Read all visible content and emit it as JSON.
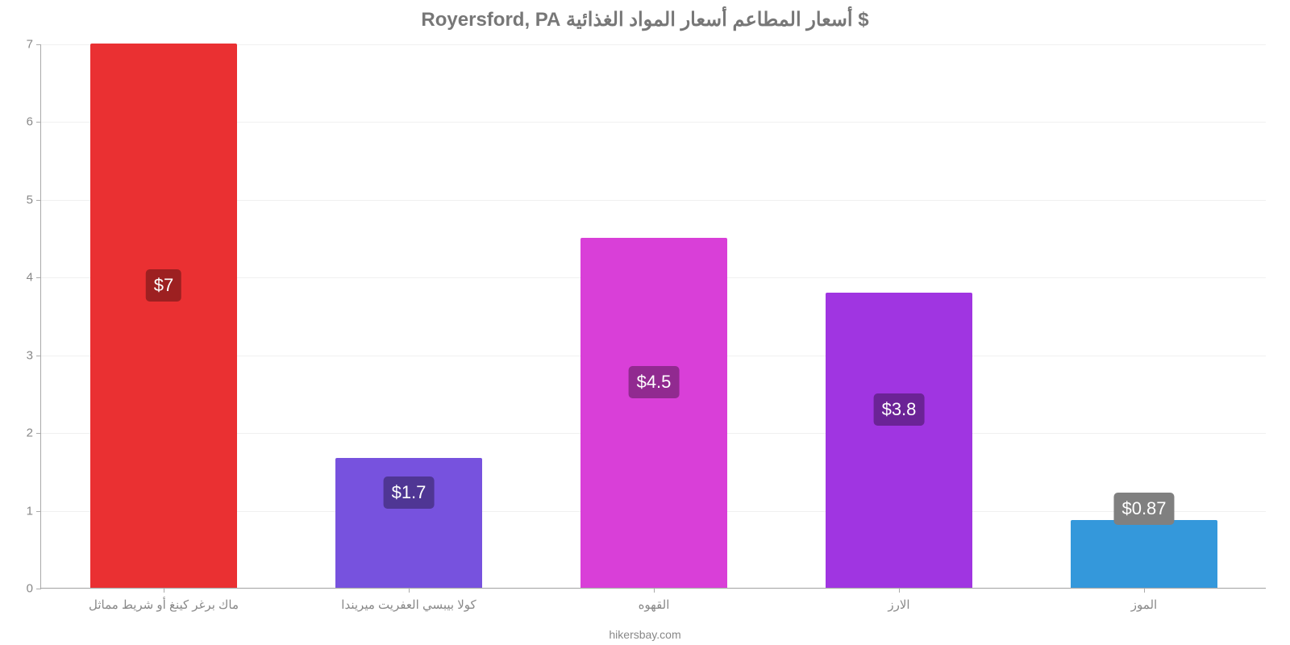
{
  "chart": {
    "type": "bar",
    "title": "$ أسعار المطاعم أسعار المواد الغذائية Royersford, PA",
    "title_fontsize": 24,
    "title_color": "#777777",
    "background_color": "#ffffff",
    "grid_color": "#f0f0f0",
    "axis_color": "#aaaaaa",
    "tick_label_color": "#888888",
    "tick_label_fontsize": 15,
    "ylim_min": 0,
    "ylim_max": 7,
    "ytick_step": 1,
    "yticks": [
      "0",
      "1",
      "2",
      "3",
      "4",
      "5",
      "6",
      "7"
    ],
    "bar_width": 0.6,
    "data_label_fontsize": 22,
    "categories": [
      {
        "label": "ماك برغر كينغ أو شريط مماثل",
        "value": 7.0,
        "display": "$7",
        "color": "#ea3032",
        "badge_color": "#9d2021"
      },
      {
        "label": "كولا بيبسي العفريت ميريندا",
        "value": 1.67,
        "display": "$1.7",
        "color": "#7752de",
        "badge_color": "#4f3694"
      },
      {
        "label": "القهوه",
        "value": 4.5,
        "display": "$4.5",
        "color": "#d93fd8",
        "badge_color": "#912a90"
      },
      {
        "label": "الارز",
        "value": 3.8,
        "display": "$3.8",
        "color": "#a035e1",
        "badge_color": "#6b2396"
      },
      {
        "label": "الموز",
        "value": 0.87,
        "display": "$0.87",
        "color": "#3498db",
        "badge_color": "#808080"
      }
    ],
    "footer": "hikersbay.com"
  }
}
